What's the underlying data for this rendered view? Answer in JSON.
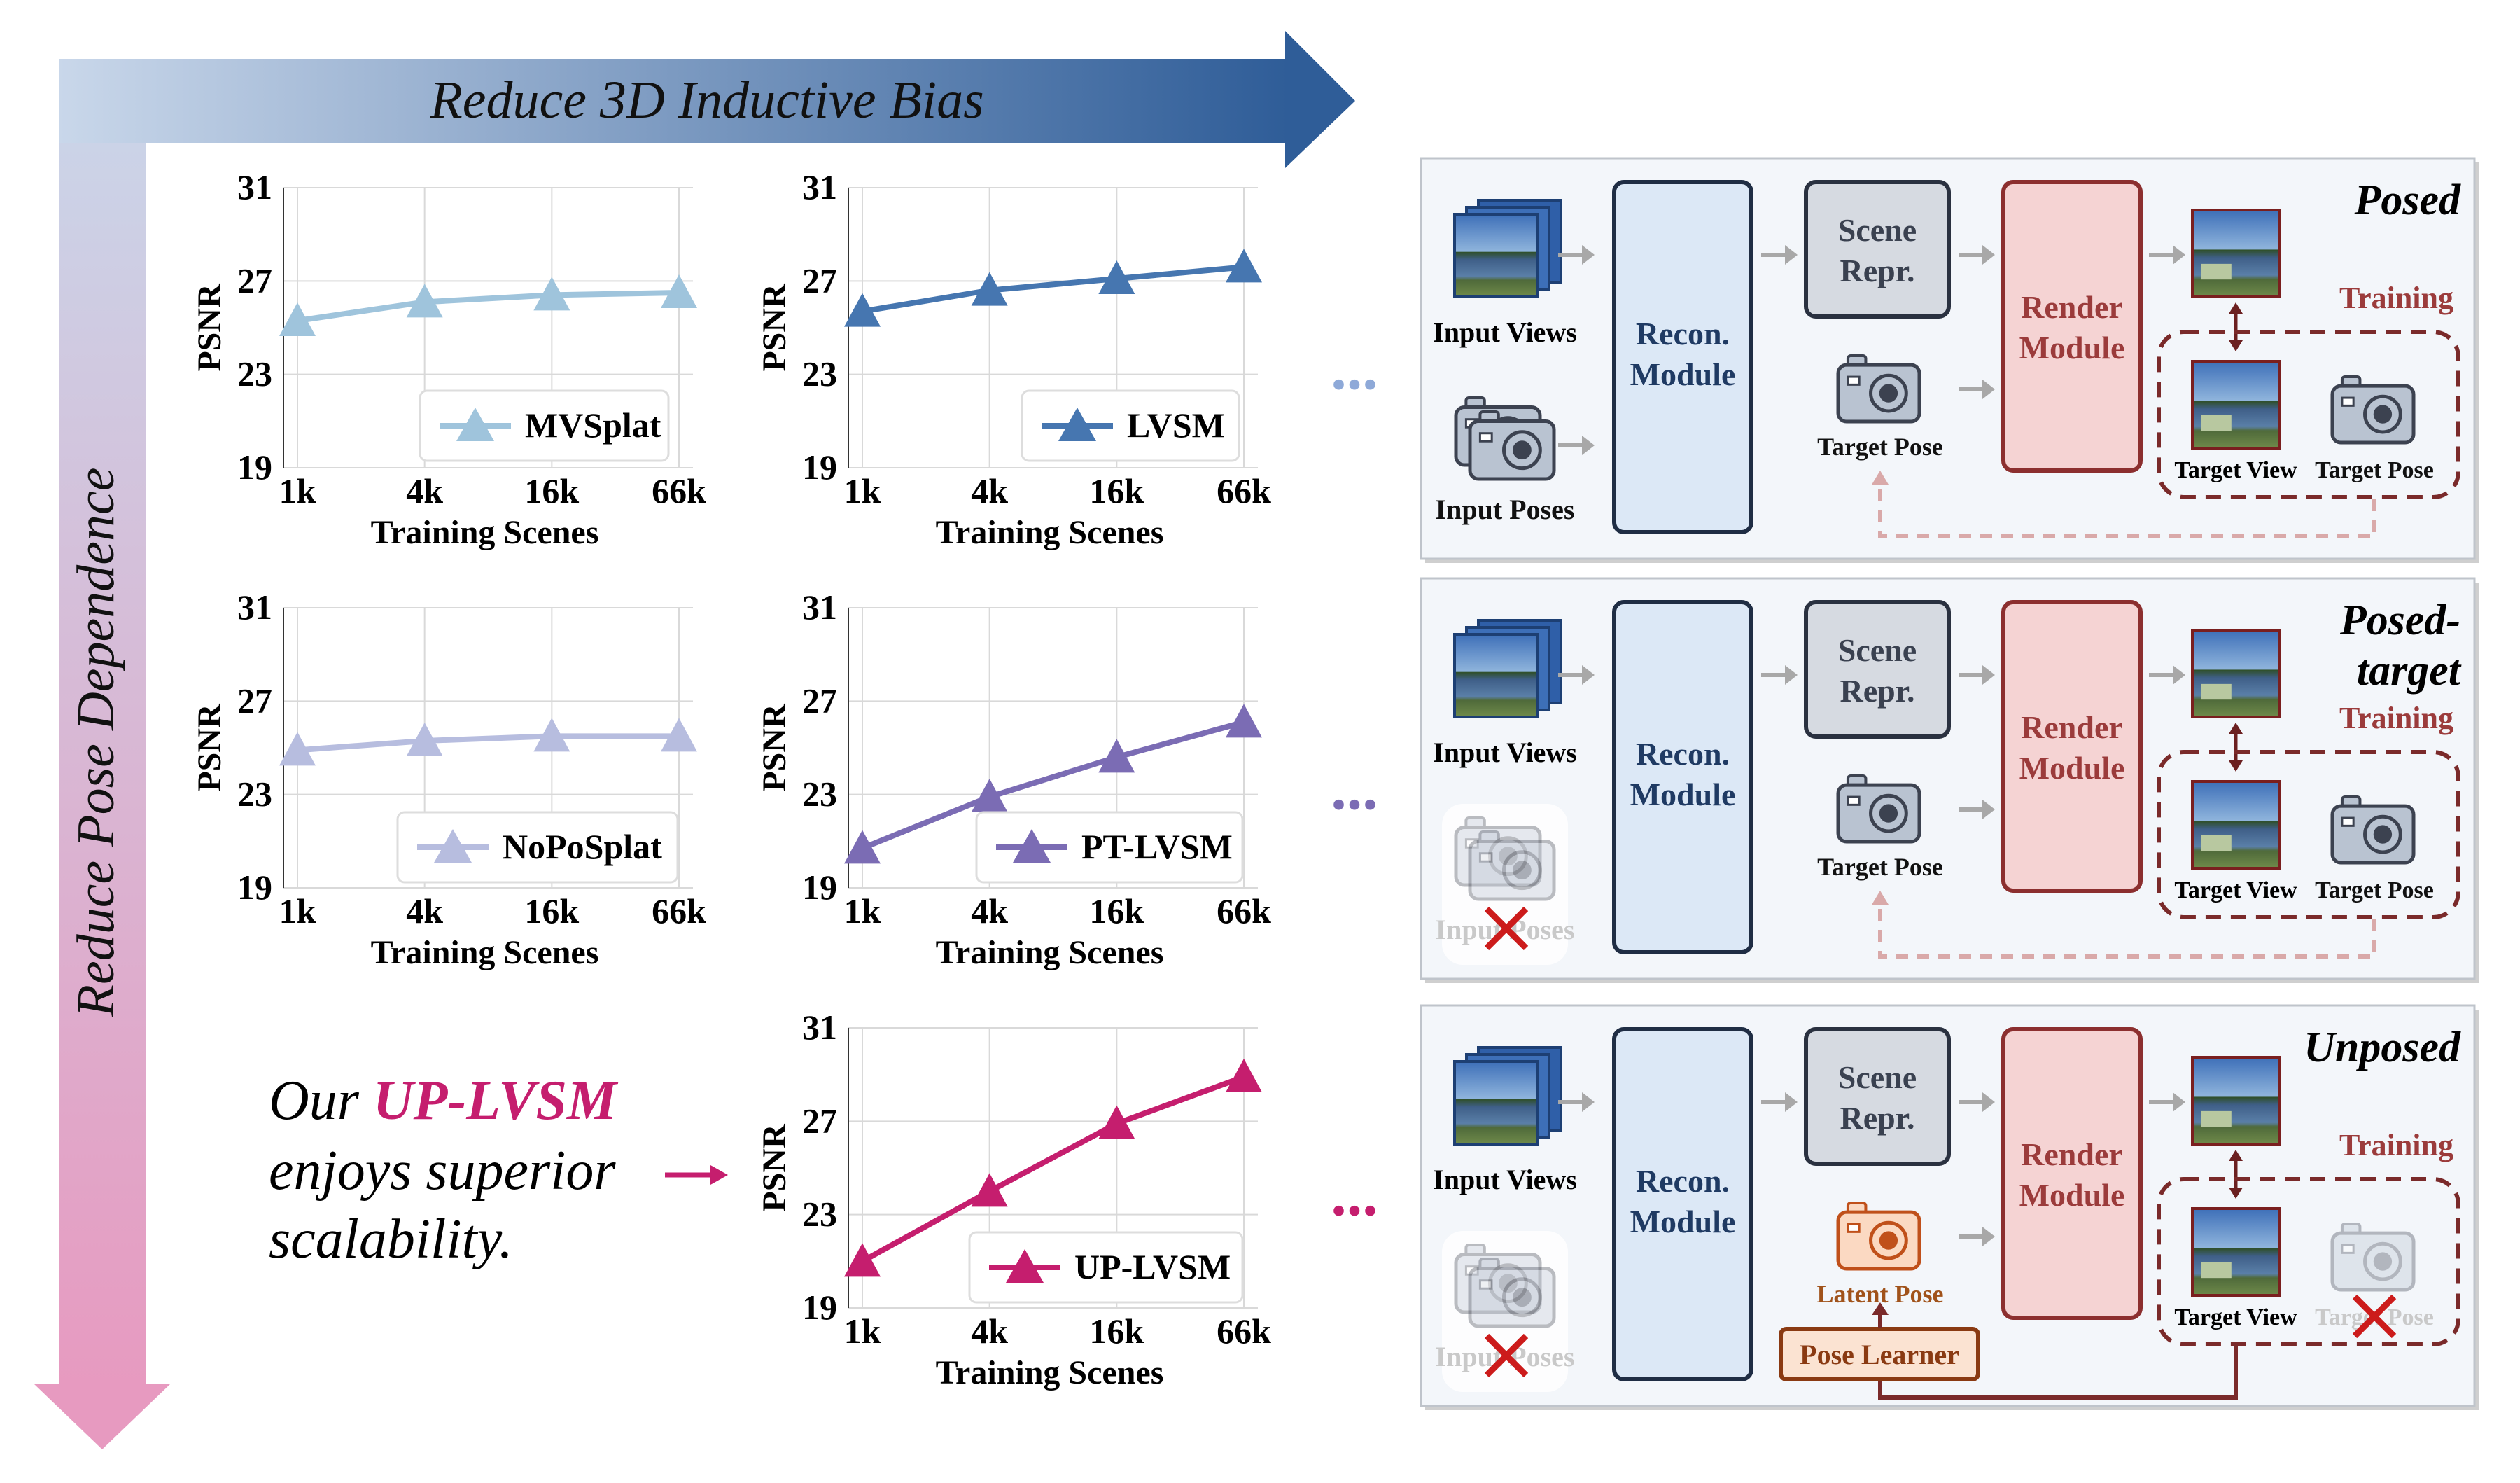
{
  "banner": {
    "top_label": "Reduce 3D Inductive Bias",
    "left_label": "Reduce Pose Dependence"
  },
  "chart_data": [
    {
      "type": "line",
      "series": [
        {
          "name": "MVSplat",
          "values": [
            25.3,
            26.1,
            26.4,
            26.5
          ]
        }
      ],
      "categories": [
        "1k",
        "4k",
        "16k",
        "66k"
      ],
      "xlabel": "Training Scenes",
      "ylabel": "PSNR",
      "yticks": [
        "19",
        "23",
        "27",
        "31"
      ],
      "ylim": [
        19,
        31
      ],
      "grid": true,
      "legend": "bottom-right",
      "color": "#9fc4dc",
      "marker": "triangle"
    },
    {
      "type": "line",
      "series": [
        {
          "name": "LVSM",
          "values": [
            25.7,
            26.6,
            27.1,
            27.6
          ]
        }
      ],
      "categories": [
        "1k",
        "4k",
        "16k",
        "66k"
      ],
      "xlabel": "Training Scenes",
      "ylabel": "PSNR",
      "yticks": [
        "19",
        "23",
        "27",
        "31"
      ],
      "ylim": [
        19,
        31
      ],
      "grid": true,
      "legend": "bottom-right",
      "color": "#4676b0",
      "marker": "triangle"
    },
    {
      "type": "line",
      "series": [
        {
          "name": "NoPoSplat",
          "values": [
            24.9,
            25.3,
            25.5,
            25.5
          ]
        }
      ],
      "categories": [
        "1k",
        "4k",
        "16k",
        "66k"
      ],
      "xlabel": "Training Scenes",
      "ylabel": "PSNR",
      "yticks": [
        "19",
        "23",
        "27",
        "31"
      ],
      "ylim": [
        19,
        31
      ],
      "grid": true,
      "legend": "bottom-right",
      "color": "#b7bddf",
      "marker": "triangle"
    },
    {
      "type": "line",
      "series": [
        {
          "name": "PT-LVSM",
          "values": [
            20.7,
            22.9,
            24.6,
            26.1
          ]
        }
      ],
      "categories": [
        "1k",
        "4k",
        "16k",
        "66k"
      ],
      "xlabel": "Training Scenes",
      "ylabel": "PSNR",
      "yticks": [
        "19",
        "23",
        "27",
        "31"
      ],
      "ylim": [
        19,
        31
      ],
      "grid": true,
      "legend": "bottom-right",
      "color": "#7b6cb4",
      "marker": "triangle"
    },
    {
      "type": "line",
      "series": [
        {
          "name": "UP-LVSM",
          "values": [
            21.0,
            24.0,
            26.9,
            28.9
          ]
        }
      ],
      "categories": [
        "1k",
        "4k",
        "16k",
        "66k"
      ],
      "xlabel": "Training Scenes",
      "ylabel": "PSNR",
      "yticks": [
        "19",
        "23",
        "27",
        "31"
      ],
      "ylim": [
        19,
        31
      ],
      "grid": true,
      "legend": "bottom-right",
      "color": "#c51e6e",
      "marker": "triangle"
    }
  ],
  "caption": {
    "line1_prefix": "Our ",
    "line1_highlight": "UP-LVSM",
    "line2": "enjoys superior",
    "line3": "scalability.",
    "highlight_color": "#c51e6e"
  },
  "ellipsis": "...",
  "panels": [
    {
      "title_lines": [
        "Posed"
      ],
      "input_views": "Input Views",
      "input_poses": "Input Poses",
      "recon": [
        "Recon.",
        "Module"
      ],
      "scene": [
        "Scene",
        "Repr."
      ],
      "render": [
        "Render",
        "Module"
      ],
      "pose_label": "Target Pose",
      "training": "Training",
      "target_view": "Target View",
      "target_pose": "Target Pose"
    },
    {
      "title_lines": [
        "Posed-",
        "target"
      ],
      "input_views": "Input Views",
      "input_poses": "Input Poses",
      "recon": [
        "Recon.",
        "Module"
      ],
      "scene": [
        "Scene",
        "Repr."
      ],
      "render": [
        "Render",
        "Module"
      ],
      "pose_label": "Target Pose",
      "training": "Training",
      "target_view": "Target View",
      "target_pose": "Target Pose"
    },
    {
      "title_lines": [
        "Unposed"
      ],
      "input_views": "Input Views",
      "input_poses": "Input Poses",
      "recon": [
        "Recon.",
        "Module"
      ],
      "scene": [
        "Scene",
        "Repr."
      ],
      "render": [
        "Render",
        "Module"
      ],
      "pose_label": "Latent Pose",
      "pose_learner": "Pose Learner",
      "training": "Training",
      "target_view": "Target View",
      "target_pose": "Target Pose"
    }
  ]
}
